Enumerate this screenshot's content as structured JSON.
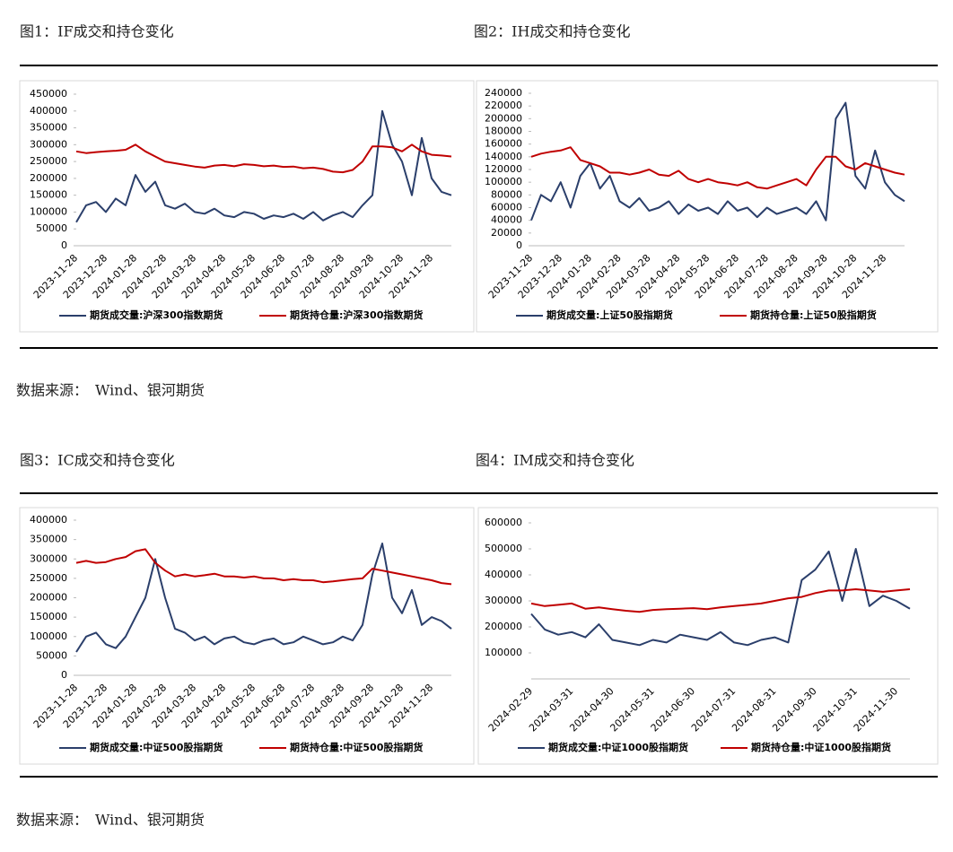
{
  "chart_data": [
    {
      "type": "line",
      "title": "图1：IF成交和持仓变化",
      "categories": [
        "2023-11-28",
        null,
        null,
        "2023-12-28",
        null,
        null,
        "2024-01-28",
        null,
        null,
        "2024-02-28",
        null,
        null,
        "2024-03-28",
        null,
        null,
        "2024-04-28",
        null,
        null,
        "2024-05-28",
        null,
        null,
        "2024-06-28",
        null,
        null,
        "2024-07-28",
        null,
        null,
        "2024-08-28",
        null,
        null,
        "2024-09-28",
        null,
        null,
        "2024-10-28",
        null,
        null,
        "2024-11-28",
        null,
        null
      ],
      "series": [
        {
          "name": "期货成交量:沪深300指数期货",
          "color": "#2b3f6b",
          "values": [
            70000,
            120000,
            130000,
            100000,
            140000,
            120000,
            210000,
            160000,
            190000,
            120000,
            110000,
            125000,
            100000,
            95000,
            110000,
            90000,
            85000,
            100000,
            95000,
            80000,
            90000,
            85000,
            95000,
            80000,
            100000,
            75000,
            90000,
            100000,
            85000,
            120000,
            150000,
            400000,
            300000,
            250000,
            150000,
            320000,
            200000,
            160000,
            150000
          ]
        },
        {
          "name": "期货持仓量:沪深300指数期货",
          "color": "#c00000",
          "values": [
            280000,
            275000,
            278000,
            280000,
            282000,
            285000,
            300000,
            280000,
            265000,
            250000,
            245000,
            240000,
            235000,
            232000,
            238000,
            240000,
            236000,
            242000,
            240000,
            236000,
            238000,
            234000,
            235000,
            230000,
            232000,
            228000,
            220000,
            218000,
            225000,
            250000,
            295000,
            295000,
            292000,
            280000,
            300000,
            280000,
            270000,
            268000,
            265000
          ]
        }
      ],
      "ylim": [
        0,
        450000
      ],
      "yticks": [
        0,
        50000,
        100000,
        150000,
        200000,
        250000,
        300000,
        350000,
        400000,
        450000
      ]
    },
    {
      "type": "line",
      "title": "图2：IH成交和持仓变化",
      "categories": [
        "2023-11-28",
        null,
        null,
        "2023-12-28",
        null,
        null,
        "2024-01-28",
        null,
        null,
        "2024-02-28",
        null,
        null,
        "2024-03-28",
        null,
        null,
        "2024-04-28",
        null,
        null,
        "2024-05-28",
        null,
        null,
        "2024-06-28",
        null,
        null,
        "2024-07-28",
        null,
        null,
        "2024-08-28",
        null,
        null,
        "2024-09-28",
        null,
        null,
        "2024-10-28",
        null,
        null,
        "2024-11-28",
        null,
        null
      ],
      "series": [
        {
          "name": "期货成交量:上证50股指期货",
          "color": "#2b3f6b",
          "values": [
            40000,
            80000,
            70000,
            100000,
            60000,
            110000,
            130000,
            90000,
            110000,
            70000,
            60000,
            75000,
            55000,
            60000,
            70000,
            50000,
            65000,
            55000,
            60000,
            50000,
            70000,
            55000,
            60000,
            45000,
            60000,
            50000,
            55000,
            60000,
            50000,
            70000,
            40000,
            200000,
            225000,
            110000,
            90000,
            150000,
            100000,
            80000,
            70000
          ]
        },
        {
          "name": "期货持仓量:上证50股指期货",
          "color": "#c00000",
          "values": [
            140000,
            145000,
            148000,
            150000,
            155000,
            135000,
            130000,
            125000,
            115000,
            115000,
            112000,
            115000,
            120000,
            112000,
            110000,
            118000,
            105000,
            100000,
            105000,
            100000,
            98000,
            95000,
            100000,
            92000,
            90000,
            95000,
            100000,
            105000,
            95000,
            120000,
            140000,
            140000,
            125000,
            120000,
            130000,
            125000,
            120000,
            115000,
            112000
          ]
        }
      ],
      "ylim": [
        0,
        240000
      ],
      "yticks": [
        0,
        20000,
        40000,
        60000,
        80000,
        100000,
        120000,
        140000,
        160000,
        180000,
        200000,
        220000,
        240000
      ]
    },
    {
      "type": "line",
      "title": "图3：IC成交和持仓变化",
      "categories": [
        "2023-11-28",
        null,
        null,
        "2023-12-28",
        null,
        null,
        "2024-01-28",
        null,
        null,
        "2024-02-28",
        null,
        null,
        "2024-03-28",
        null,
        null,
        "2024-04-28",
        null,
        null,
        "2024-05-28",
        null,
        null,
        "2024-06-28",
        null,
        null,
        "2024-07-28",
        null,
        null,
        "2024-08-28",
        null,
        null,
        "2024-09-28",
        null,
        null,
        "2024-10-28",
        null,
        null,
        "2024-11-28",
        null,
        null
      ],
      "series": [
        {
          "name": "期货成交量:中证500股指期货",
          "color": "#2b3f6b",
          "values": [
            60000,
            100000,
            110000,
            80000,
            70000,
            100000,
            150000,
            200000,
            300000,
            200000,
            120000,
            110000,
            90000,
            100000,
            80000,
            95000,
            100000,
            85000,
            80000,
            90000,
            95000,
            80000,
            85000,
            100000,
            90000,
            80000,
            85000,
            100000,
            90000,
            130000,
            260000,
            340000,
            200000,
            160000,
            220000,
            130000,
            150000,
            140000,
            120000
          ]
        },
        {
          "name": "期货持仓量:中证500股指期货",
          "color": "#c00000",
          "values": [
            290000,
            295000,
            290000,
            292000,
            300000,
            305000,
            320000,
            325000,
            290000,
            270000,
            255000,
            260000,
            255000,
            258000,
            262000,
            255000,
            255000,
            252000,
            255000,
            250000,
            250000,
            245000,
            248000,
            245000,
            245000,
            240000,
            242000,
            245000,
            248000,
            250000,
            275000,
            270000,
            265000,
            260000,
            255000,
            250000,
            245000,
            238000,
            235000
          ]
        }
      ],
      "ylim": [
        0,
        400000
      ],
      "yticks": [
        0,
        50000,
        100000,
        150000,
        200000,
        250000,
        300000,
        350000,
        400000
      ]
    },
    {
      "type": "line",
      "title": "图4：IM成交和持仓变化",
      "categories": [
        "2024-02-29",
        null,
        null,
        "2024-03-31",
        null,
        null,
        "2024-04-30",
        null,
        null,
        "2024-05-31",
        null,
        null,
        "2024-06-30",
        null,
        null,
        "2024-07-31",
        null,
        null,
        "2024-08-31",
        null,
        null,
        "2024-09-30",
        null,
        null,
        "2024-10-31",
        null,
        null,
        "2024-11-30",
        null
      ],
      "series": [
        {
          "name": "期货成交量:中证1000股指期货",
          "color": "#2b3f6b",
          "values": [
            250000,
            190000,
            170000,
            180000,
            160000,
            210000,
            150000,
            140000,
            130000,
            150000,
            140000,
            170000,
            160000,
            150000,
            180000,
            140000,
            130000,
            150000,
            160000,
            140000,
            380000,
            420000,
            490000,
            300000,
            500000,
            280000,
            320000,
            300000,
            270000
          ]
        },
        {
          "name": "期货持仓量:中证1000股指期货",
          "color": "#c00000",
          "values": [
            290000,
            280000,
            285000,
            290000,
            270000,
            275000,
            268000,
            262000,
            258000,
            265000,
            268000,
            270000,
            272000,
            268000,
            275000,
            280000,
            285000,
            290000,
            300000,
            310000,
            315000,
            330000,
            340000,
            340000,
            345000,
            340000,
            335000,
            340000,
            345000
          ]
        }
      ],
      "ylim": [
        0,
        600000
      ],
      "yticks": [
        100000,
        200000,
        300000,
        400000,
        500000,
        600000
      ]
    }
  ],
  "sources": [
    "数据来源：　Wind、银河期货",
    "数据来源：　Wind、银河期货"
  ]
}
